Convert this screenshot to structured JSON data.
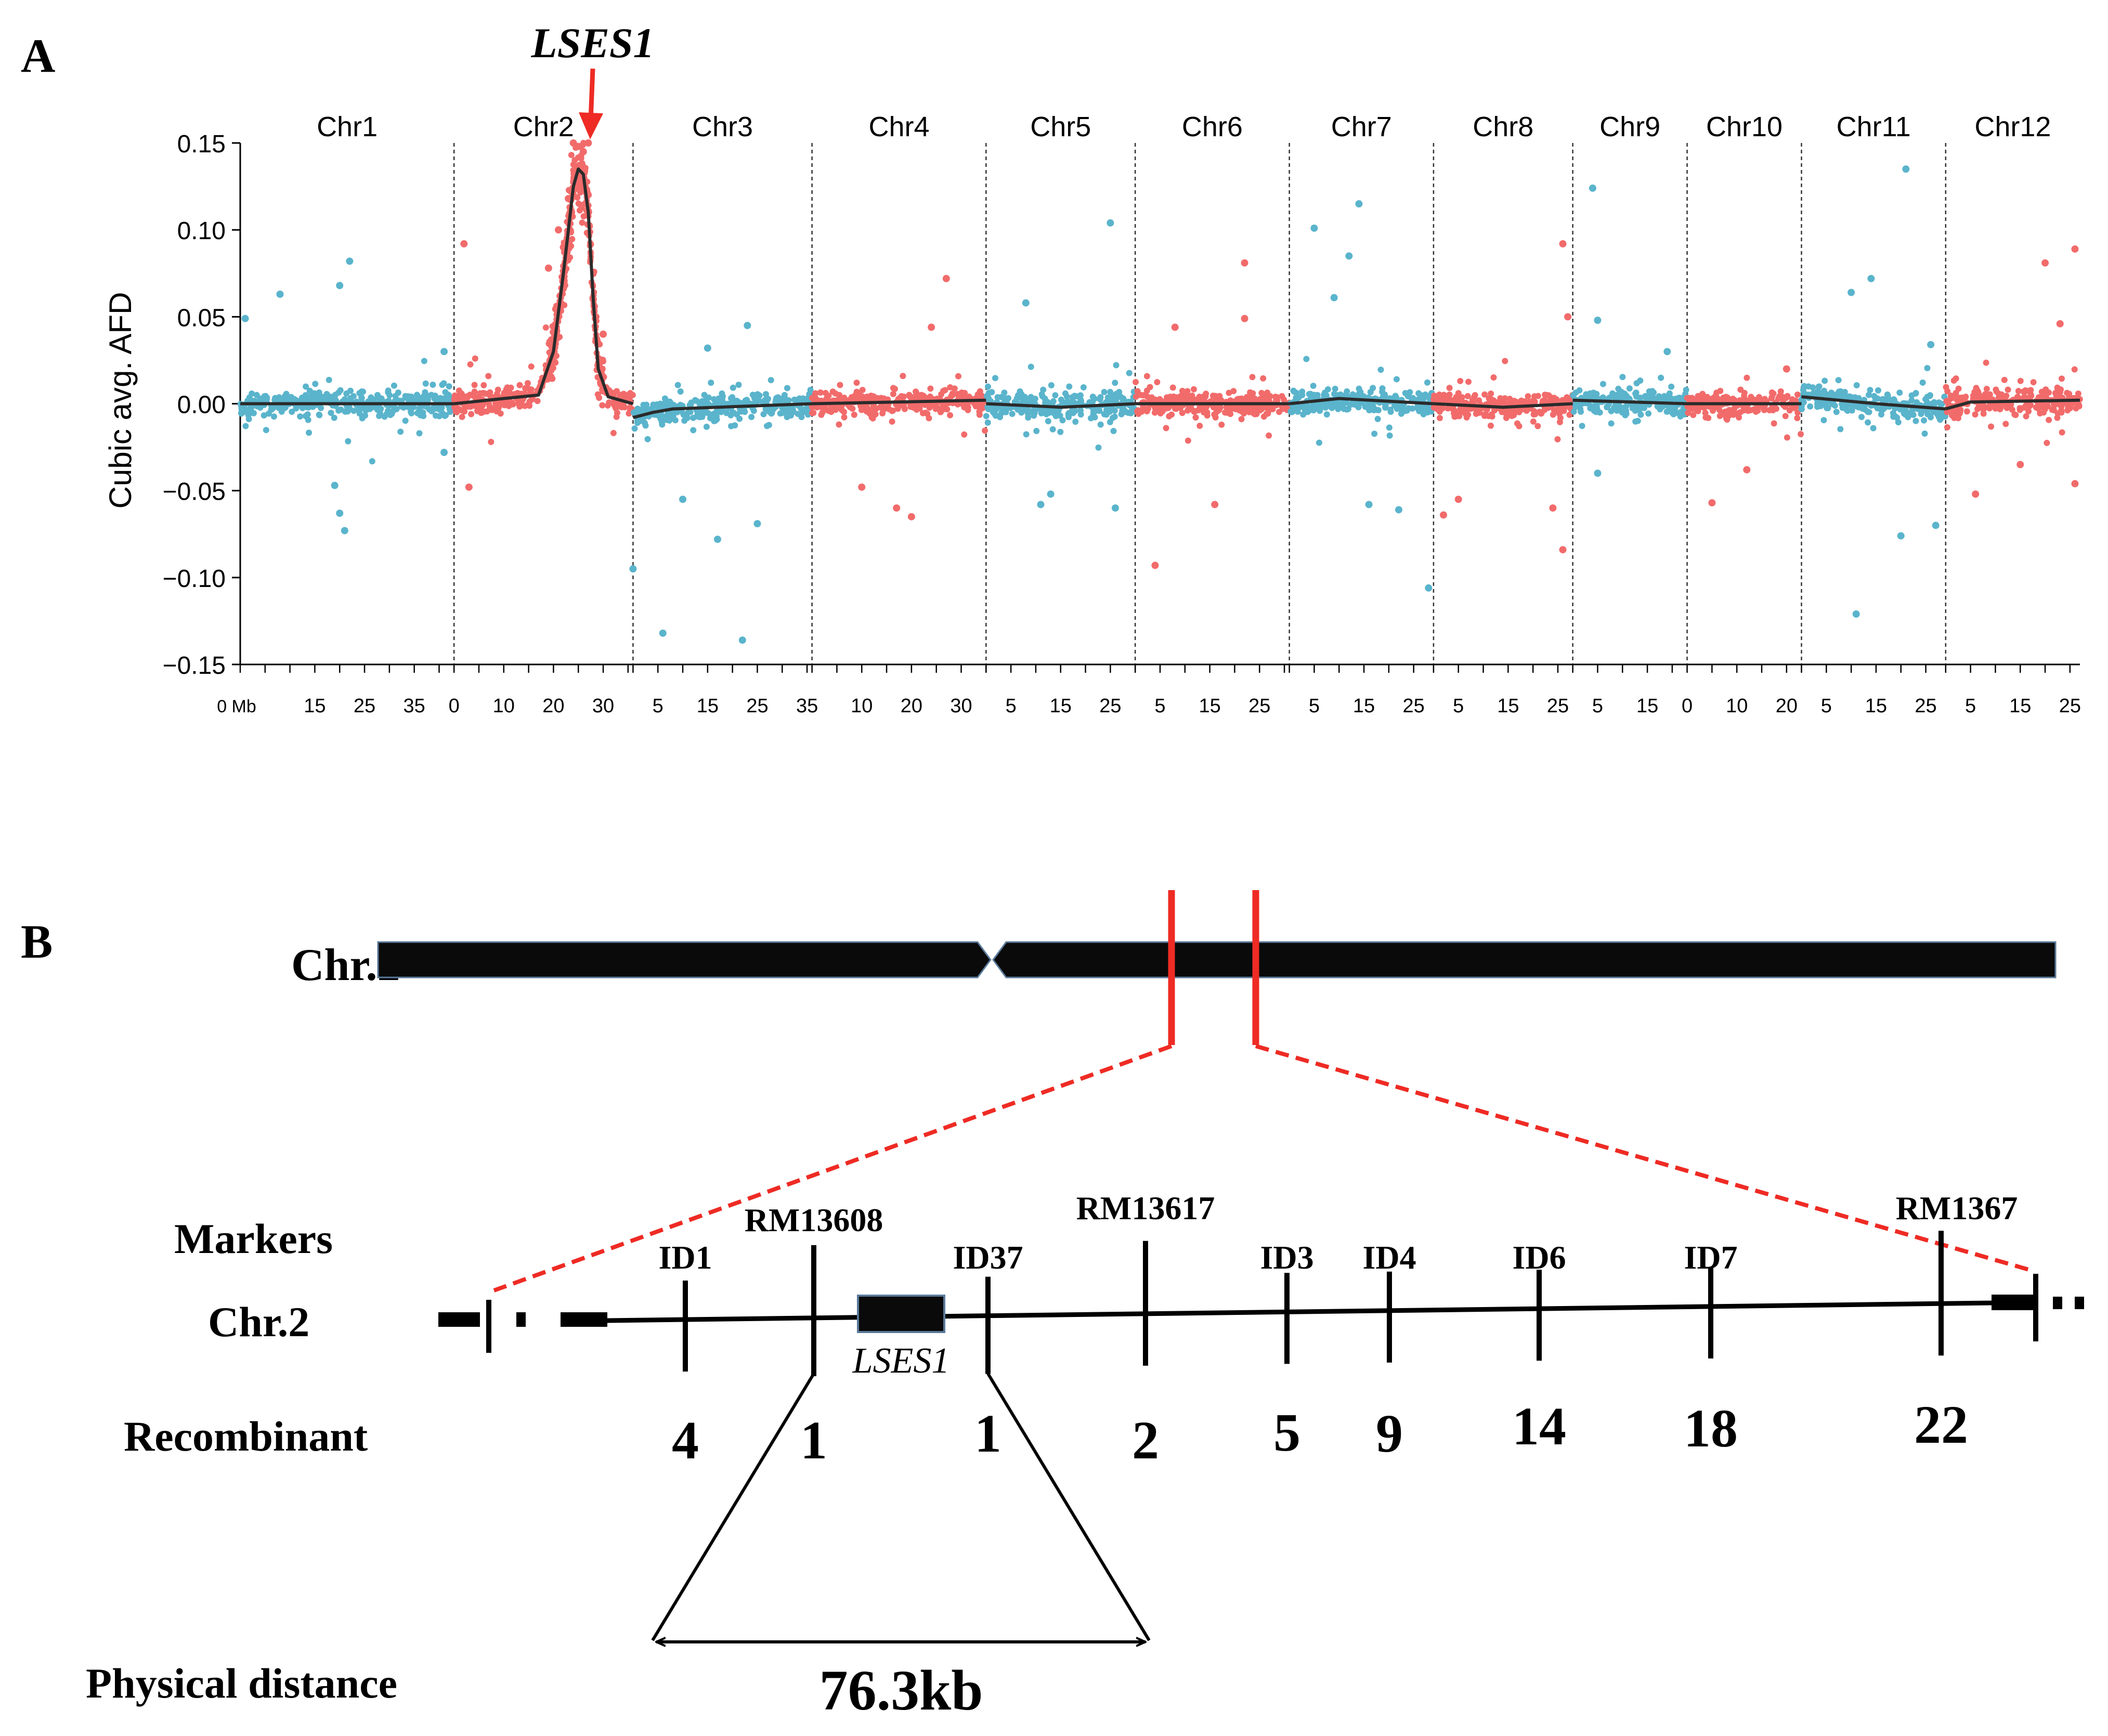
{
  "panel_a": {
    "letter": "A",
    "highlight_label": "LSES1",
    "chart_data": {
      "type": "scatter",
      "ylabel": "Cubic avg. AFD",
      "ylim": [
        -0.15,
        0.15
      ],
      "yticks": [
        0.15,
        0.1,
        0.05,
        0.0,
        -0.05,
        -0.1,
        -0.15
      ],
      "ytick_labels": [
        "0.15",
        "0.10",
        "0.05",
        "0.00",
        "−0.05",
        "−0.10",
        "−0.15"
      ],
      "x_unit_label": "0 Mb",
      "colors": {
        "blue": "#5ab4cc",
        "red": "#f26b6b",
        "trend": "#2b2b2b",
        "arrow": "#ee2b24"
      },
      "highlight_chromosome": "Chr2",
      "highlight_position_mb": 26,
      "chromosomes": [
        {
          "name": "Chr1",
          "length_mb": 43,
          "color": "blue",
          "tick_labels": [
            "15",
            "25",
            "35"
          ],
          "tick_values": [
            15,
            25,
            35
          ]
        },
        {
          "name": "Chr2",
          "length_mb": 36,
          "color": "red",
          "tick_labels": [
            "0",
            "10",
            "20",
            "30"
          ],
          "tick_values": [
            0,
            10,
            20,
            30
          ]
        },
        {
          "name": "Chr3",
          "length_mb": 36,
          "color": "blue",
          "tick_labels": [
            "5",
            "15",
            "25",
            "35"
          ],
          "tick_values": [
            5,
            15,
            25,
            35
          ]
        },
        {
          "name": "Chr4",
          "length_mb": 35,
          "color": "red",
          "tick_labels": [
            "10",
            "20",
            "30"
          ],
          "tick_values": [
            10,
            20,
            30
          ]
        },
        {
          "name": "Chr5",
          "length_mb": 30,
          "color": "blue",
          "tick_labels": [
            "5",
            "15",
            "25"
          ],
          "tick_values": [
            5,
            15,
            25
          ]
        },
        {
          "name": "Chr6",
          "length_mb": 31,
          "color": "red",
          "tick_labels": [
            "5",
            "15",
            "25"
          ],
          "tick_values": [
            5,
            15,
            25
          ]
        },
        {
          "name": "Chr7",
          "length_mb": 29,
          "color": "blue",
          "tick_labels": [
            "5",
            "15",
            "25"
          ],
          "tick_values": [
            5,
            15,
            25
          ]
        },
        {
          "name": "Chr8",
          "length_mb": 28,
          "color": "red",
          "tick_labels": [
            "5",
            "15",
            "25"
          ],
          "tick_values": [
            5,
            15,
            25
          ]
        },
        {
          "name": "Chr9",
          "length_mb": 23,
          "color": "blue",
          "tick_labels": [
            "5",
            "15"
          ],
          "tick_values": [
            5,
            15
          ]
        },
        {
          "name": "Chr10",
          "length_mb": 23,
          "color": "red",
          "tick_labels": [
            "0",
            "10",
            "20"
          ],
          "tick_values": [
            0,
            10,
            20
          ]
        },
        {
          "name": "Chr11",
          "length_mb": 29,
          "color": "blue",
          "tick_labels": [
            "5",
            "15",
            "25"
          ],
          "tick_values": [
            5,
            15,
            25
          ]
        },
        {
          "name": "Chr12",
          "length_mb": 27,
          "color": "red",
          "tick_labels": [
            "5",
            "15",
            "25"
          ],
          "tick_values": [
            5,
            15,
            25
          ]
        }
      ],
      "trend": [
        {
          "chr": "Chr1",
          "points": [
            [
              0,
              0.0
            ],
            [
              43,
              0.0
            ]
          ]
        },
        {
          "chr": "Chr2",
          "points": [
            [
              0,
              0.0
            ],
            [
              10,
              0.003
            ],
            [
              17,
              0.005
            ],
            [
              20,
              0.03
            ],
            [
              22,
              0.075
            ],
            [
              24,
              0.125
            ],
            [
              25,
              0.135
            ],
            [
              26,
              0.132
            ],
            [
              27,
              0.11
            ],
            [
              28,
              0.06
            ],
            [
              29,
              0.02
            ],
            [
              31,
              0.004
            ],
            [
              36,
              0.0
            ]
          ]
        },
        {
          "chr": "Chr3",
          "points": [
            [
              0,
              -0.008
            ],
            [
              4,
              -0.005
            ],
            [
              8,
              -0.003
            ],
            [
              36,
              0.0
            ]
          ]
        },
        {
          "chr": "Chr4",
          "points": [
            [
              0,
              0.0
            ],
            [
              35,
              0.002
            ]
          ]
        },
        {
          "chr": "Chr5",
          "points": [
            [
              0,
              0.0
            ],
            [
              15,
              -0.002
            ],
            [
              30,
              0.0
            ]
          ]
        },
        {
          "chr": "Chr6",
          "points": [
            [
              0,
              0.0
            ],
            [
              31,
              0.0
            ]
          ]
        },
        {
          "chr": "Chr7",
          "points": [
            [
              0,
              0.0
            ],
            [
              10,
              0.003
            ],
            [
              29,
              0.0
            ]
          ]
        },
        {
          "chr": "Chr8",
          "points": [
            [
              0,
              0.0
            ],
            [
              14,
              -0.002
            ],
            [
              28,
              0.0
            ]
          ]
        },
        {
          "chr": "Chr9",
          "points": [
            [
              0,
              0.002
            ],
            [
              23,
              0.0
            ]
          ]
        },
        {
          "chr": "Chr10",
          "points": [
            [
              0,
              0.0
            ],
            [
              23,
              0.0
            ]
          ]
        },
        {
          "chr": "Chr11",
          "points": [
            [
              0,
              0.004
            ],
            [
              15,
              0.0
            ],
            [
              29,
              -0.003
            ]
          ]
        },
        {
          "chr": "Chr12",
          "points": [
            [
              0,
              -0.003
            ],
            [
              5,
              0.001
            ],
            [
              27,
              0.002
            ]
          ]
        }
      ],
      "points": [
        {
          "chr": "Chr1",
          "x": 22,
          "y": 0.082
        },
        {
          "chr": "Chr1",
          "x": 20,
          "y": 0.068
        },
        {
          "chr": "Chr1",
          "x": 8,
          "y": 0.063
        },
        {
          "chr": "Chr1",
          "x": 1,
          "y": 0.049
        },
        {
          "chr": "Chr1",
          "x": 20,
          "y": -0.063
        },
        {
          "chr": "Chr1",
          "x": 21,
          "y": -0.073
        },
        {
          "chr": "Chr1",
          "x": 19,
          "y": -0.047
        },
        {
          "chr": "Chr1",
          "x": 41,
          "y": 0.03
        },
        {
          "chr": "Chr1",
          "x": 41,
          "y": -0.028
        },
        {
          "chr": "Chr2",
          "x": 2,
          "y": 0.092
        },
        {
          "chr": "Chr2",
          "x": 3,
          "y": -0.048
        },
        {
          "chr": "Chr2",
          "x": 19,
          "y": 0.078
        },
        {
          "chr": "Chr2",
          "x": 21,
          "y": 0.1
        },
        {
          "chr": "Chr2",
          "x": 23,
          "y": 0.118
        },
        {
          "chr": "Chr2",
          "x": 24,
          "y": 0.15
        },
        {
          "chr": "Chr2",
          "x": 25,
          "y": 0.148
        },
        {
          "chr": "Chr2",
          "x": 26,
          "y": 0.145
        },
        {
          "chr": "Chr2",
          "x": 27,
          "y": 0.15
        },
        {
          "chr": "Chr2",
          "x": 22,
          "y": 0.09
        },
        {
          "chr": "Chr2",
          "x": 28,
          "y": 0.06
        },
        {
          "chr": "Chr2",
          "x": 30,
          "y": 0.04
        },
        {
          "chr": "Chr3",
          "x": 0,
          "y": -0.095
        },
        {
          "chr": "Chr3",
          "x": 6,
          "y": -0.132
        },
        {
          "chr": "Chr3",
          "x": 22,
          "y": -0.136
        },
        {
          "chr": "Chr3",
          "x": 17,
          "y": -0.078
        },
        {
          "chr": "Chr3",
          "x": 25,
          "y": -0.069
        },
        {
          "chr": "Chr3",
          "x": 23,
          "y": 0.045
        },
        {
          "chr": "Chr3",
          "x": 15,
          "y": 0.032
        },
        {
          "chr": "Chr3",
          "x": 10,
          "y": -0.055
        },
        {
          "chr": "Chr4",
          "x": 27,
          "y": 0.072
        },
        {
          "chr": "Chr4",
          "x": 17,
          "y": -0.06
        },
        {
          "chr": "Chr4",
          "x": 20,
          "y": -0.065
        },
        {
          "chr": "Chr4",
          "x": 10,
          "y": -0.048
        },
        {
          "chr": "Chr4",
          "x": 24,
          "y": 0.044
        },
        {
          "chr": "Chr5",
          "x": 25,
          "y": 0.104
        },
        {
          "chr": "Chr5",
          "x": 11,
          "y": -0.058
        },
        {
          "chr": "Chr5",
          "x": 26,
          "y": -0.06
        },
        {
          "chr": "Chr5",
          "x": 8,
          "y": 0.058
        },
        {
          "chr": "Chr5",
          "x": 13,
          "y": -0.052
        },
        {
          "chr": "Chr6",
          "x": 4,
          "y": -0.093
        },
        {
          "chr": "Chr6",
          "x": 22,
          "y": 0.081
        },
        {
          "chr": "Chr6",
          "x": 22,
          "y": 0.049
        },
        {
          "chr": "Chr6",
          "x": 16,
          "y": -0.058
        },
        {
          "chr": "Chr6",
          "x": 8,
          "y": 0.044
        },
        {
          "chr": "Chr7",
          "x": 14,
          "y": 0.115
        },
        {
          "chr": "Chr7",
          "x": 5,
          "y": 0.101
        },
        {
          "chr": "Chr7",
          "x": 12,
          "y": 0.085
        },
        {
          "chr": "Chr7",
          "x": 28,
          "y": -0.106
        },
        {
          "chr": "Chr7",
          "x": 16,
          "y": -0.058
        },
        {
          "chr": "Chr7",
          "x": 22,
          "y": -0.061
        },
        {
          "chr": "Chr7",
          "x": 9,
          "y": 0.061
        },
        {
          "chr": "Chr8",
          "x": 26,
          "y": 0.092
        },
        {
          "chr": "Chr8",
          "x": 26,
          "y": -0.084
        },
        {
          "chr": "Chr8",
          "x": 2,
          "y": -0.064
        },
        {
          "chr": "Chr8",
          "x": 5,
          "y": -0.055
        },
        {
          "chr": "Chr8",
          "x": 27,
          "y": 0.05
        },
        {
          "chr": "Chr8",
          "x": 24,
          "y": -0.06
        },
        {
          "chr": "Chr9",
          "x": 4,
          "y": 0.124
        },
        {
          "chr": "Chr9",
          "x": 5,
          "y": 0.048
        },
        {
          "chr": "Chr9",
          "x": 5,
          "y": -0.04
        },
        {
          "chr": "Chr9",
          "x": 19,
          "y": 0.03
        },
        {
          "chr": "Chr10",
          "x": 5,
          "y": -0.057
        },
        {
          "chr": "Chr10",
          "x": 12,
          "y": -0.038
        },
        {
          "chr": "Chr10",
          "x": 20,
          "y": 0.02
        },
        {
          "chr": "Chr11",
          "x": 21,
          "y": 0.135
        },
        {
          "chr": "Chr11",
          "x": 11,
          "y": -0.121
        },
        {
          "chr": "Chr11",
          "x": 20,
          "y": -0.076
        },
        {
          "chr": "Chr11",
          "x": 14,
          "y": 0.072
        },
        {
          "chr": "Chr11",
          "x": 10,
          "y": 0.064
        },
        {
          "chr": "Chr11",
          "x": 26,
          "y": 0.034
        },
        {
          "chr": "Chr11",
          "x": 27,
          "y": -0.07
        },
        {
          "chr": "Chr12",
          "x": 26,
          "y": 0.089
        },
        {
          "chr": "Chr12",
          "x": 20,
          "y": 0.081
        },
        {
          "chr": "Chr12",
          "x": 23,
          "y": 0.046
        },
        {
          "chr": "Chr12",
          "x": 26,
          "y": -0.046
        },
        {
          "chr": "Chr12",
          "x": 6,
          "y": -0.052
        },
        {
          "chr": "Chr12",
          "x": 15,
          "y": -0.035
        }
      ]
    }
  },
  "panel_b": {
    "letter": "B",
    "chromosome_label": "Chr.2",
    "row_labels": {
      "markers": "Markers",
      "chromosome": "Chr.2",
      "recombinant": "Recombinant",
      "physical_distance": "Physical distance"
    },
    "gene_label": "LSES1",
    "distance_label": "76.3kb",
    "markers": [
      {
        "name": "ID1",
        "recombinant": "4"
      },
      {
        "name": "RM13608",
        "recombinant": "1"
      },
      {
        "name": "ID37",
        "recombinant": "1"
      },
      {
        "name": "RM13617",
        "recombinant": "2"
      },
      {
        "name": "ID3",
        "recombinant": "5"
      },
      {
        "name": "ID4",
        "recombinant": "9"
      },
      {
        "name": "ID6",
        "recombinant": "14"
      },
      {
        "name": "ID7",
        "recombinant": "18"
      },
      {
        "name": "RM1367",
        "recombinant": "22"
      }
    ]
  }
}
